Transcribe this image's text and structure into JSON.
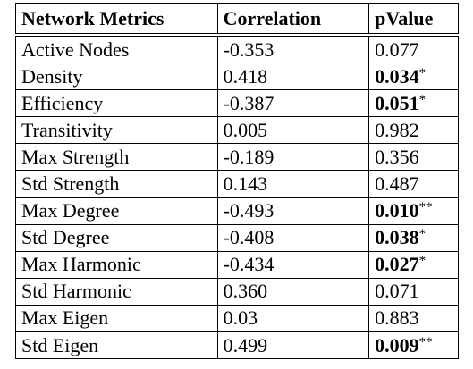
{
  "table": {
    "header": [
      "Network Metrics",
      "Correlation",
      "pValue"
    ],
    "rows": [
      {
        "metric": "Active Nodes",
        "correlation": "-0.353",
        "pvalue": "0.077"
      },
      {
        "metric": "Density",
        "correlation": "0.418",
        "pvalue": "0.034",
        "significance": "*"
      },
      {
        "metric": "Efficiency",
        "correlation": "-0.387",
        "pvalue": "0.051",
        "significance": "*"
      },
      {
        "metric": "Transitivity",
        "correlation": "0.005",
        "pvalue": "0.982"
      },
      {
        "metric": "Max Strength",
        "correlation": "-0.189",
        "pvalue": "0.356"
      },
      {
        "metric": "Std Strength",
        "correlation": "0.143",
        "pvalue": "0.487"
      },
      {
        "metric": "Max Degree",
        "correlation": "-0.493",
        "pvalue": "0.010",
        "significance": "**"
      },
      {
        "metric": "Std Degree",
        "correlation": "-0.408",
        "pvalue": "0.038",
        "significance": "*"
      },
      {
        "metric": "Max Harmonic",
        "correlation": "-0.434",
        "pvalue": "0.027",
        "significance": "*"
      },
      {
        "metric": "Std Harmonic",
        "correlation": "0.360",
        "pvalue": "0.071"
      },
      {
        "metric": "Max Eigen",
        "correlation": "0.03",
        "pvalue": "0.883"
      },
      {
        "metric": "Std Eigen",
        "correlation": "0.499",
        "pvalue": "0.009",
        "significance": "**"
      }
    ]
  }
}
